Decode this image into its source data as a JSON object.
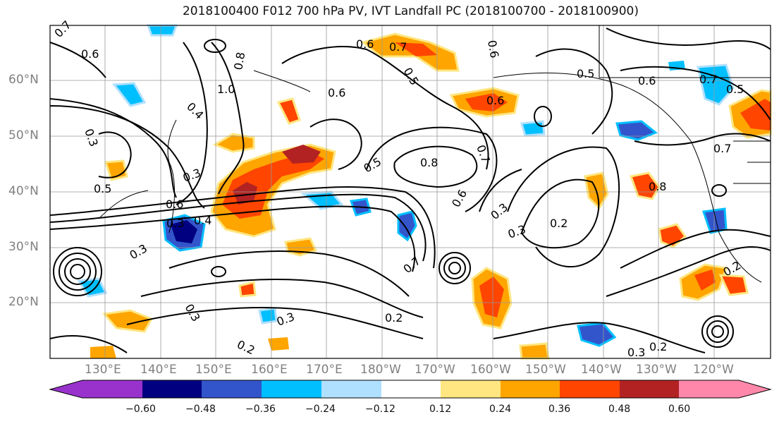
{
  "title": "2018100400 F012 700 hPa PV, IVT Landfall PC (2018100700 - 2018100900)",
  "map": {
    "lat_labels": [
      "60°N",
      "50°N",
      "40°N",
      "30°N",
      "20°N"
    ],
    "lon_labels": [
      "130°E",
      "140°E",
      "150°E",
      "160°E",
      "170°E",
      "180°W",
      "170°W",
      "160°W",
      "150°W",
      "140°W",
      "130°W",
      "120°W"
    ],
    "contour_labels": [
      "0.7",
      "0.6",
      "0.6",
      "0.7",
      "0.8",
      "0.5",
      "1.0",
      "0.6",
      "0.4",
      "0.3",
      "0.3",
      "0.6",
      "0.5",
      "0.8",
      "0.7",
      "0.5",
      "0.6",
      "0.4",
      "0.3",
      "0.3",
      "0.6",
      "0.3",
      "0.2",
      "0.3",
      "0.6",
      "0.8",
      "0.5",
      "0.7",
      "0.7",
      "0.5",
      "0.2",
      "0.3",
      "0.2",
      "0.3",
      "0.2",
      "0.2",
      "0.3",
      "0.7",
      "0.6"
    ]
  },
  "colorbar": {
    "ticks": [
      "−0.60",
      "−0.48",
      "−0.36",
      "−0.24",
      "−0.12",
      "0.12",
      "0.24",
      "0.36",
      "0.48",
      "0.60"
    ],
    "colors": [
      "#9932cc",
      "#000080",
      "#3355cc",
      "#00bfff",
      "#b0e0ff",
      "#ffffff",
      "#ffe680",
      "#ffa500",
      "#ff4500",
      "#b22222",
      "#ff88aa"
    ]
  }
}
